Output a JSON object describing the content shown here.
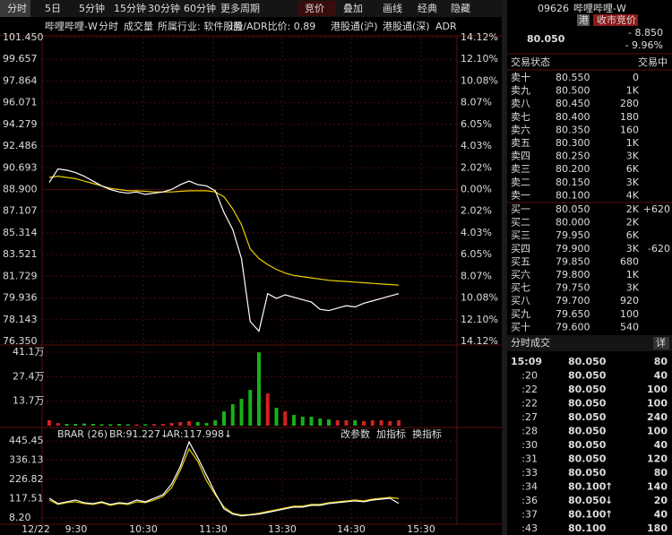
{
  "toolbar": {
    "left_tabs": [
      "分时",
      "5日",
      "5分钟",
      "15分钟",
      "30分钟",
      "60分钟",
      "更多周期"
    ],
    "right_tabs": [
      "竞价",
      "叠加",
      "画线",
      "经典",
      "隐藏"
    ]
  },
  "info_bar": [
    "哔哩哔哩-W",
    "分时",
    "成交量",
    "所属行业: 软件服务",
    "I股/ADR比价: 0.89",
    "港股通(沪)",
    "港股通(深)",
    "ADR"
  ],
  "price_chart": {
    "ylim": [
      76.35,
      101.45
    ],
    "prev_close": {
      "value": 88.9,
      "label": "88.900"
    },
    "yticks": [
      {
        "value": 101.45,
        "label": "101.450"
      },
      99.657,
      97.864,
      96.071,
      94.279,
      92.486,
      90.693,
      {
        "value": 88.9,
        "label": "88.900"
      },
      87.107,
      85.314,
      83.521,
      81.729,
      79.936,
      78.143,
      {
        "value": 76.35,
        "label": "76.350"
      }
    ],
    "pct_labels": [
      "14.12%",
      "12.10%",
      "10.08%",
      "8.07%",
      "6.05%",
      "4.03%",
      "2.02%",
      "0.00%",
      "2.02%",
      "4.03%",
      "6.05%",
      "8.07%",
      "10.08%",
      "12.10%",
      "14.12%"
    ],
    "price": [
      89.5,
      90.6,
      90.5,
      90.3,
      90.0,
      89.6,
      89.2,
      88.9,
      88.7,
      88.6,
      88.7,
      88.5,
      88.6,
      88.7,
      88.9,
      89.3,
      89.6,
      89.3,
      89.2,
      88.8,
      87.0,
      85.6,
      83.2,
      78.0,
      77.2,
      80.3,
      79.9,
      80.2,
      80.0,
      79.8,
      79.6,
      79.0,
      78.9,
      79.1,
      79.3,
      79.2,
      79.5,
      79.7,
      79.9,
      80.1,
      80.3
    ],
    "average": [
      89.9,
      90.0,
      89.9,
      89.8,
      89.6,
      89.4,
      89.2,
      89.0,
      88.9,
      88.8,
      88.8,
      88.75,
      88.7,
      88.7,
      88.7,
      88.75,
      88.8,
      88.8,
      88.8,
      88.7,
      88.3,
      87.3,
      86.0,
      84.0,
      83.2,
      82.7,
      82.3,
      82.0,
      81.8,
      81.7,
      81.6,
      81.5,
      81.4,
      81.35,
      81.3,
      81.25,
      81.2,
      81.15,
      81.1,
      81.05,
      81.0
    ]
  },
  "volume_chart": {
    "ylim": [
      0,
      41.1
    ],
    "yticks": [
      {
        "value": 41.1,
        "label": "41.1万"
      },
      {
        "value": 27.4,
        "label": "27.4万"
      },
      {
        "value": 13.7,
        "label": "13.7万"
      }
    ],
    "values": [
      3,
      1.5,
      1,
      1,
      1.2,
      1,
      0.8,
      0.8,
      1,
      0.8,
      0.7,
      0.8,
      0.9,
      1,
      1.5,
      2,
      2.5,
      2,
      1.5,
      3,
      8,
      12,
      15,
      20,
      41,
      18,
      10,
      8,
      6,
      5,
      5,
      4,
      3.5,
      3,
      3,
      3,
      2.5,
      3,
      3,
      2.5,
      3
    ]
  },
  "indicator": {
    "name": "BRAR (26)",
    "br_label": "BR:91.227↓",
    "ar_label": "AR:117.998↓",
    "buttons": [
      "改参数",
      "加指标",
      "换指标"
    ],
    "ylim": [
      8.2,
      445.45
    ],
    "yticks": [
      445.45,
      336.13,
      226.82,
      117.51,
      {
        "value": 8.2,
        "label": "8.20"
      }
    ],
    "br": [
      120,
      90,
      100,
      110,
      95,
      90,
      100,
      85,
      95,
      90,
      110,
      100,
      120,
      140,
      200,
      300,
      440,
      350,
      250,
      150,
      60,
      30,
      20,
      25,
      30,
      40,
      50,
      60,
      70,
      70,
      80,
      80,
      90,
      95,
      100,
      105,
      100,
      110,
      115,
      120,
      91
    ],
    "ar": [
      110,
      85,
      95,
      100,
      90,
      85,
      95,
      80,
      90,
      85,
      100,
      95,
      110,
      130,
      180,
      280,
      400,
      330,
      220,
      140,
      70,
      35,
      25,
      28,
      35,
      45,
      55,
      65,
      75,
      75,
      85,
      85,
      95,
      100,
      105,
      110,
      105,
      115,
      120,
      125,
      118
    ]
  },
  "time_axis": [
    "12/22",
    "9:30",
    "10:30",
    "11:30",
    "13:30",
    "14:30",
    "15:30"
  ],
  "quote": {
    "code": "09626",
    "name": "哔哩哔哩-W",
    "badge_market": "港",
    "badge_status": "收市竞价",
    "price": "80.050",
    "change": "- 8.850",
    "change_pct": "- 9.96%"
  },
  "order_book": {
    "status_label": "交易状态",
    "status": "交易中",
    "asks": [
      {
        "level": "卖十",
        "price": "80.550",
        "volume": "0"
      },
      {
        "level": "卖九",
        "price": "80.500",
        "volume": "1K"
      },
      {
        "level": "卖八",
        "price": "80.450",
        "volume": "280"
      },
      {
        "level": "卖七",
        "price": "80.400",
        "volume": "180"
      },
      {
        "level": "卖六",
        "price": "80.350",
        "volume": "160"
      },
      {
        "level": "卖五",
        "price": "80.300",
        "volume": "1K"
      },
      {
        "level": "卖四",
        "price": "80.250",
        "volume": "3K"
      },
      {
        "level": "卖三",
        "price": "80.200",
        "volume": "6K"
      },
      {
        "level": "卖二",
        "price": "80.150",
        "volume": "3K"
      },
      {
        "level": "卖一",
        "price": "80.100",
        "volume": "4K"
      }
    ],
    "bids": [
      {
        "level": "买一",
        "price": "80.050",
        "volume": "2K",
        "change": "+620"
      },
      {
        "level": "买二",
        "price": "80.000",
        "volume": "2K"
      },
      {
        "level": "买三",
        "price": "79.950",
        "volume": "6K"
      },
      {
        "level": "买四",
        "price": "79.900",
        "volume": "3K",
        "change": "-620"
      },
      {
        "level": "买五",
        "price": "79.850",
        "volume": "680"
      },
      {
        "level": "买六",
        "price": "79.800",
        "volume": "1K"
      },
      {
        "level": "买七",
        "price": "79.750",
        "volume": "3K"
      },
      {
        "level": "买八",
        "price": "79.700",
        "volume": "920"
      },
      {
        "level": "买九",
        "price": "79.650",
        "volume": "100"
      },
      {
        "level": "买十",
        "price": "79.600",
        "volume": "540"
      }
    ]
  },
  "trades": {
    "title": "分时成交",
    "detail": "详",
    "rows": [
      {
        "time": "15:09",
        "price": "80.050",
        "volume": "80"
      },
      {
        "time": ":20",
        "price": "80.050",
        "volume": "40"
      },
      {
        "time": ":22",
        "price": "80.050",
        "volume": "100"
      },
      {
        "time": ":22",
        "price": "80.050",
        "volume": "100"
      },
      {
        "time": ":27",
        "price": "80.050",
        "volume": "240"
      },
      {
        "time": ":28",
        "price": "80.050",
        "volume": "100"
      },
      {
        "time": ":30",
        "price": "80.050",
        "volume": "40"
      },
      {
        "time": ":31",
        "price": "80.050",
        "volume": "120"
      },
      {
        "time": ":33",
        "price": "80.050",
        "volume": "80"
      },
      {
        "time": ":34",
        "price": "80.100",
        "arrow": "↑",
        "volume": "140"
      },
      {
        "time": ":36",
        "price": "80.050",
        "arrow": "↓",
        "volume": "20"
      },
      {
        "time": ":37",
        "price": "80.100",
        "arrow": "↑",
        "volume": "40"
      },
      {
        "time": ":43",
        "price": "80.100",
        "volume": "180"
      }
    ]
  }
}
